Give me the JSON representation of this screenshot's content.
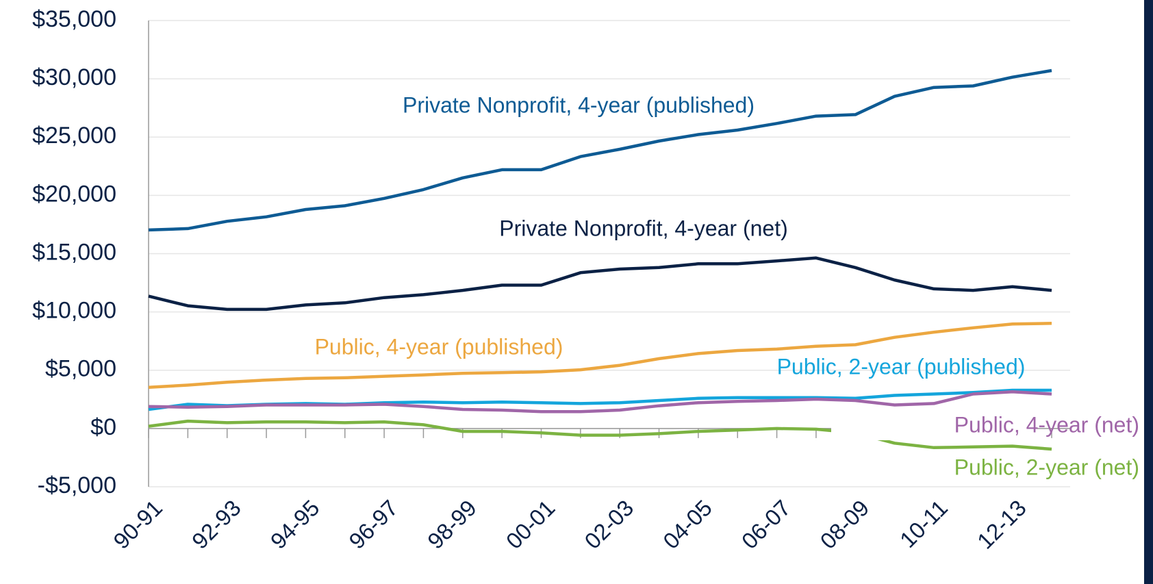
{
  "chart_data": {
    "type": "line",
    "categories": [
      "90-91",
      null,
      "92-93",
      null,
      "94-95",
      null,
      "96-97",
      null,
      "98-99",
      null,
      "00-01",
      null,
      "02-03",
      null,
      "04-05",
      null,
      "06-07",
      null,
      "08-09",
      null,
      "10-11",
      null,
      "12-13",
      null
    ],
    "series": [
      {
        "name": "Private Nonprofit, 4-year (published)",
        "color": "#0e5b94",
        "values": [
          17030,
          17150,
          17780,
          18160,
          18790,
          19110,
          19740,
          20500,
          21500,
          22200,
          22200,
          23330,
          23960,
          24660,
          25220,
          25600,
          26170,
          26800,
          26930,
          28500,
          29260,
          29390,
          30140,
          30710
        ]
      },
      {
        "name": "Private Nonprofit, 4-year (net)",
        "color": "#0b2145",
        "values": [
          11350,
          10530,
          10220,
          10220,
          10600,
          10780,
          11230,
          11480,
          11850,
          12300,
          12300,
          13370,
          13680,
          13810,
          14130,
          14130,
          14380,
          14630,
          13810,
          12740,
          11980,
          11850,
          12170,
          11850
        ]
      },
      {
        "name": "Public, 4-year (published)",
        "color": "#eca740",
        "values": [
          3530,
          3720,
          3970,
          4160,
          4290,
          4350,
          4480,
          4600,
          4730,
          4790,
          4860,
          5040,
          5420,
          5990,
          6430,
          6690,
          6810,
          7060,
          7190,
          7820,
          8260,
          8640,
          8960,
          9020
        ]
      },
      {
        "name": "Public, 2-year (published)",
        "color": "#14a5dc",
        "values": [
          1640,
          2080,
          1960,
          2080,
          2140,
          2080,
          2210,
          2270,
          2210,
          2270,
          2210,
          2140,
          2210,
          2400,
          2590,
          2650,
          2650,
          2650,
          2590,
          2840,
          2960,
          3090,
          3280,
          3280
        ]
      },
      {
        "name": "Public, 4-year (net)",
        "color": "#a066a8",
        "values": [
          1890,
          1830,
          1890,
          2020,
          2020,
          2020,
          2080,
          1890,
          1640,
          1580,
          1450,
          1450,
          1580,
          1950,
          2210,
          2330,
          2400,
          2520,
          2400,
          2020,
          2140,
          2960,
          3150,
          2960
        ]
      },
      {
        "name": "Public, 2-year (net)",
        "color": "#7cb342",
        "values": [
          190,
          630,
          500,
          570,
          570,
          500,
          570,
          320,
          -250,
          -250,
          -380,
          -570,
          -570,
          -440,
          -250,
          -130,
          0,
          -60,
          -380,
          -1260,
          -1640,
          -1580,
          -1510,
          -1770
        ]
      }
    ],
    "ylim": [
      -5000,
      35000
    ],
    "yticks": [
      {
        "value": -5000,
        "label": "-$5,000"
      },
      {
        "value": 0,
        "label": "$0"
      },
      {
        "value": 5000,
        "label": "$5,000"
      },
      {
        "value": 10000,
        "label": "$10,000"
      },
      {
        "value": 15000,
        "label": "$15,000"
      },
      {
        "value": 20000,
        "label": "$20,000"
      },
      {
        "value": 25000,
        "label": "$25,000"
      },
      {
        "value": 30000,
        "label": "$30,000"
      },
      {
        "value": 35000,
        "label": "$35,000"
      }
    ],
    "grid": true
  }
}
